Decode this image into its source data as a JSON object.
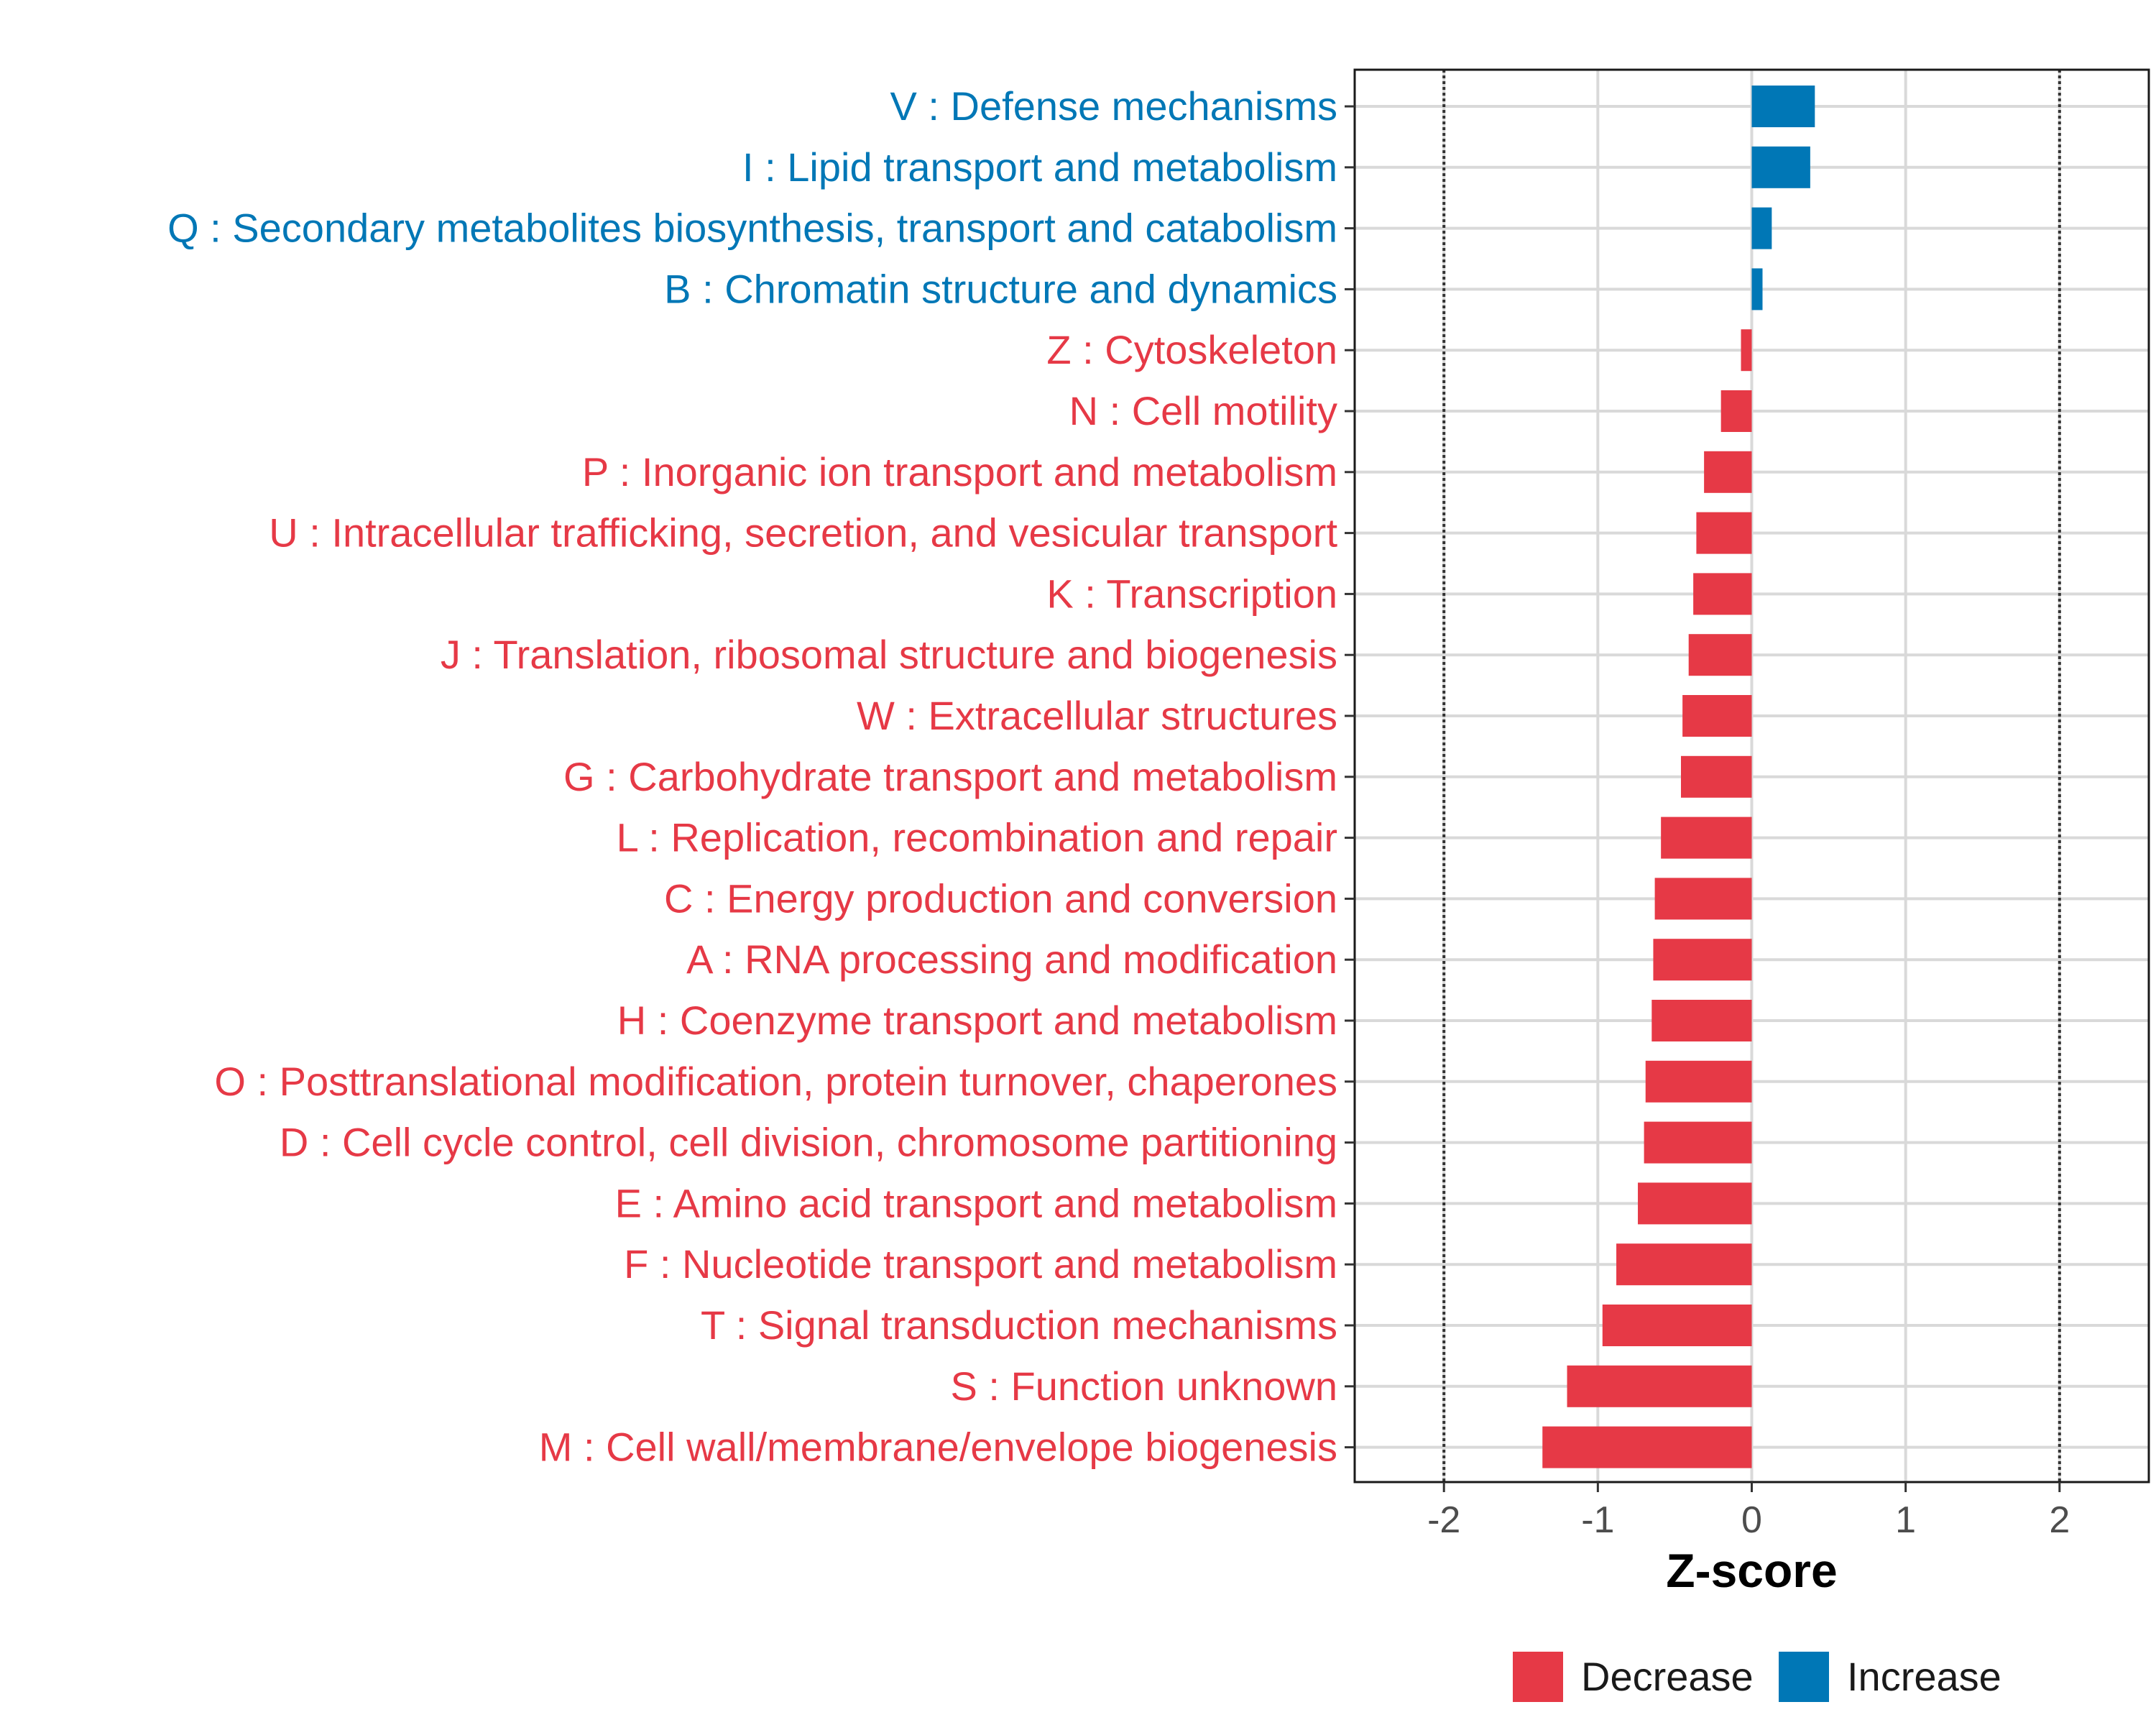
{
  "chart_data": {
    "type": "bar",
    "orientation": "horizontal",
    "title": "",
    "xlabel": "Z-score",
    "ylabel": "",
    "xlim": [
      -2.58,
      2.58
    ],
    "xticks": [
      -2,
      -1,
      0,
      1,
      2
    ],
    "xtick_labels": [
      "-2",
      "-1",
      "0",
      "1",
      "2"
    ],
    "reference_lines": [
      -2,
      2
    ],
    "grid": true,
    "legend_position": "bottom",
    "colors": {
      "Decrease": "#e63946",
      "Increase": "#0077b6"
    },
    "legend": [
      {
        "label": "Decrease",
        "color": "#e63946"
      },
      {
        "label": "Increase",
        "color": "#0077b6"
      }
    ],
    "categories": [
      {
        "label": "V : Defense mechanisms",
        "value": 0.41,
        "group": "Increase"
      },
      {
        "label": "I : Lipid transport and metabolism",
        "value": 0.38,
        "group": "Increase"
      },
      {
        "label": "Q : Secondary metabolites biosynthesis, transport and catabolism",
        "value": 0.13,
        "group": "Increase"
      },
      {
        "label": "B : Chromatin structure and dynamics",
        "value": 0.07,
        "group": "Increase"
      },
      {
        "label": "Z : Cytoskeleton",
        "value": -0.07,
        "group": "Decrease"
      },
      {
        "label": "N : Cell motility",
        "value": -0.2,
        "group": "Decrease"
      },
      {
        "label": "P : Inorganic ion transport and metabolism",
        "value": -0.31,
        "group": "Decrease"
      },
      {
        "label": "U : Intracellular trafficking, secretion, and vesicular transport",
        "value": -0.36,
        "group": "Decrease"
      },
      {
        "label": "K : Transcription",
        "value": -0.38,
        "group": "Decrease"
      },
      {
        "label": "J : Translation, ribosomal structure and biogenesis",
        "value": -0.41,
        "group": "Decrease"
      },
      {
        "label": "W : Extracellular structures",
        "value": -0.45,
        "group": "Decrease"
      },
      {
        "label": "G : Carbohydrate transport and metabolism",
        "value": -0.46,
        "group": "Decrease"
      },
      {
        "label": "L : Replication, recombination and repair",
        "value": -0.59,
        "group": "Decrease"
      },
      {
        "label": "C : Energy production and conversion",
        "value": -0.63,
        "group": "Decrease"
      },
      {
        "label": "A : RNA processing and modification",
        "value": -0.64,
        "group": "Decrease"
      },
      {
        "label": "H : Coenzyme transport and metabolism",
        "value": -0.65,
        "group": "Decrease"
      },
      {
        "label": "O : Posttranslational modification, protein turnover, chaperones",
        "value": -0.69,
        "group": "Decrease"
      },
      {
        "label": "D : Cell cycle control, cell division, chromosome partitioning",
        "value": -0.7,
        "group": "Decrease"
      },
      {
        "label": "E : Amino acid transport and metabolism",
        "value": -0.74,
        "group": "Decrease"
      },
      {
        "label": "F : Nucleotide transport and metabolism",
        "value": -0.88,
        "group": "Decrease"
      },
      {
        "label": "T : Signal transduction mechanisms",
        "value": -0.97,
        "group": "Decrease"
      },
      {
        "label": "S : Function unknown",
        "value": -1.2,
        "group": "Decrease"
      },
      {
        "label": "M : Cell wall/membrane/envelope biogenesis",
        "value": -1.36,
        "group": "Decrease"
      }
    ]
  }
}
